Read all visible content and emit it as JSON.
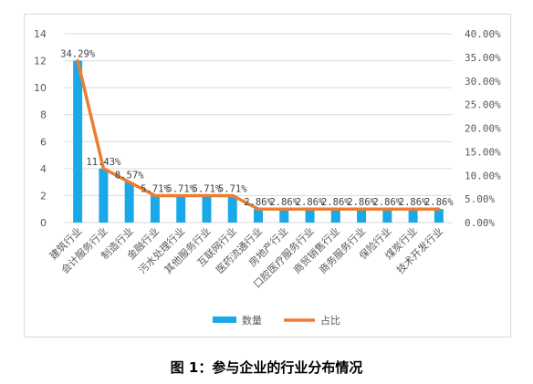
{
  "caption": "图 1：参与企业的行业分布情况",
  "colors": {
    "bar": "#1aa9e8",
    "line": "#ed7d31",
    "grid": "#d9d9d9",
    "axis_text": "#595959"
  },
  "chart_data": {
    "type": "bar",
    "categories": [
      "建筑行业",
      "会计服务行业",
      "制造行业",
      "金融行业",
      "污水处理行业",
      "其他服务行业",
      "互联网行业",
      "医药流通行业",
      "房地产行业",
      "口腔医疗服务行业",
      "商贸销售行业",
      "商务服务行业",
      "保险行业",
      "煤炭行业",
      "技术开发行业"
    ],
    "series": [
      {
        "name": "数量",
        "type": "bar",
        "axis": "left",
        "values": [
          12,
          4,
          3,
          2,
          2,
          2,
          2,
          1,
          1,
          1,
          1,
          1,
          1,
          1,
          1
        ]
      },
      {
        "name": "占比",
        "type": "line",
        "axis": "right",
        "values": [
          34.29,
          11.43,
          8.57,
          5.71,
          5.71,
          5.71,
          5.71,
          2.86,
          2.86,
          2.86,
          2.86,
          2.86,
          2.86,
          2.86,
          2.86
        ],
        "labels": [
          "34.29%",
          "11.43%",
          "8.57%",
          "5.71%",
          "5.71%",
          "5.71%",
          "5.71%",
          "2.86%",
          "2.86%",
          "2.86%",
          "2.86%",
          "2.86%",
          "2.86%",
          "2.86%",
          "2.86%"
        ]
      }
    ],
    "y_left": {
      "range": [
        0,
        14
      ],
      "ticks": [
        "0",
        "2",
        "4",
        "6",
        "8",
        "10",
        "12",
        "14"
      ]
    },
    "y_right": {
      "range": [
        0,
        40
      ],
      "ticks": [
        "0.00%",
        "5.00%",
        "10.00%",
        "15.00%",
        "20.00%",
        "25.00%",
        "30.00%",
        "35.00%",
        "40.00%"
      ]
    },
    "grid": true,
    "legend_position": "bottom"
  }
}
